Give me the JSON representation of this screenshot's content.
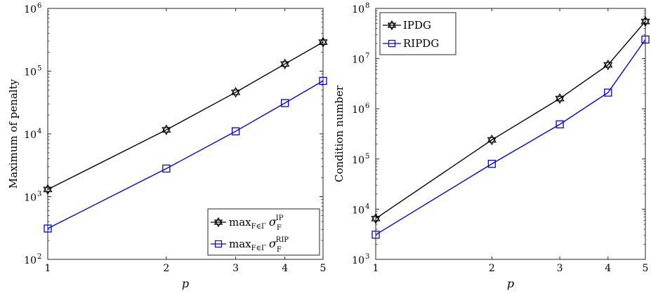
{
  "chart_data": [
    {
      "type": "line",
      "title": "",
      "xlabel": "p",
      "ylabel": "Maximum of penalty",
      "xscale": "log",
      "yscale": "log",
      "xlim": [
        1,
        5
      ],
      "ylim": [
        100,
        1000000
      ],
      "x": [
        1,
        2,
        3,
        4,
        5
      ],
      "x_ticks": [
        "1",
        "2",
        "3",
        "4",
        "5"
      ],
      "y_ticks": [
        {
          "base": "10",
          "exp": "2"
        },
        {
          "base": "10",
          "exp": "3"
        },
        {
          "base": "10",
          "exp": "4"
        },
        {
          "base": "10",
          "exp": "5"
        },
        {
          "base": "10",
          "exp": "6"
        }
      ],
      "grid": false,
      "legend_position": "bottom-right",
      "series": [
        {
          "name_parts": {
            "op": "max",
            "sub": "F∈Γ",
            "sym": "σ",
            "sym_sub": "F",
            "sym_sup": "IP"
          },
          "color": "#000000",
          "marker": "hexagram",
          "values": [
            1300,
            11600,
            46000,
            130000,
            290000
          ]
        },
        {
          "name_parts": {
            "op": "max",
            "sub": "F∈Γ",
            "sym": "σ",
            "sym_sub": "F",
            "sym_sup": "RIP"
          },
          "color": "#0000ee",
          "marker": "square",
          "values": [
            310,
            2800,
            11000,
            31000,
            70000
          ]
        }
      ]
    },
    {
      "type": "line",
      "title": "",
      "xlabel": "p",
      "ylabel": "Condition number",
      "xscale": "log",
      "yscale": "log",
      "xlim": [
        1,
        5
      ],
      "ylim": [
        1000,
        100000000
      ],
      "x": [
        1,
        2,
        3,
        4,
        5
      ],
      "x_ticks": [
        "1",
        "2",
        "3",
        "4",
        "5"
      ],
      "y_ticks": [
        {
          "base": "10",
          "exp": "3"
        },
        {
          "base": "10",
          "exp": "4"
        },
        {
          "base": "10",
          "exp": "5"
        },
        {
          "base": "10",
          "exp": "6"
        },
        {
          "base": "10",
          "exp": "7"
        },
        {
          "base": "10",
          "exp": "8"
        }
      ],
      "grid": false,
      "legend_position": "top-left",
      "series": [
        {
          "name": "IPDG",
          "color": "#000000",
          "marker": "hexagram",
          "values": [
            6500,
            240000,
            1600000,
            7500000,
            55000000
          ]
        },
        {
          "name": "RIPDG",
          "color": "#0000ee",
          "marker": "square",
          "values": [
            3100,
            80000,
            490000,
            2100000,
            24000000
          ]
        }
      ]
    }
  ]
}
